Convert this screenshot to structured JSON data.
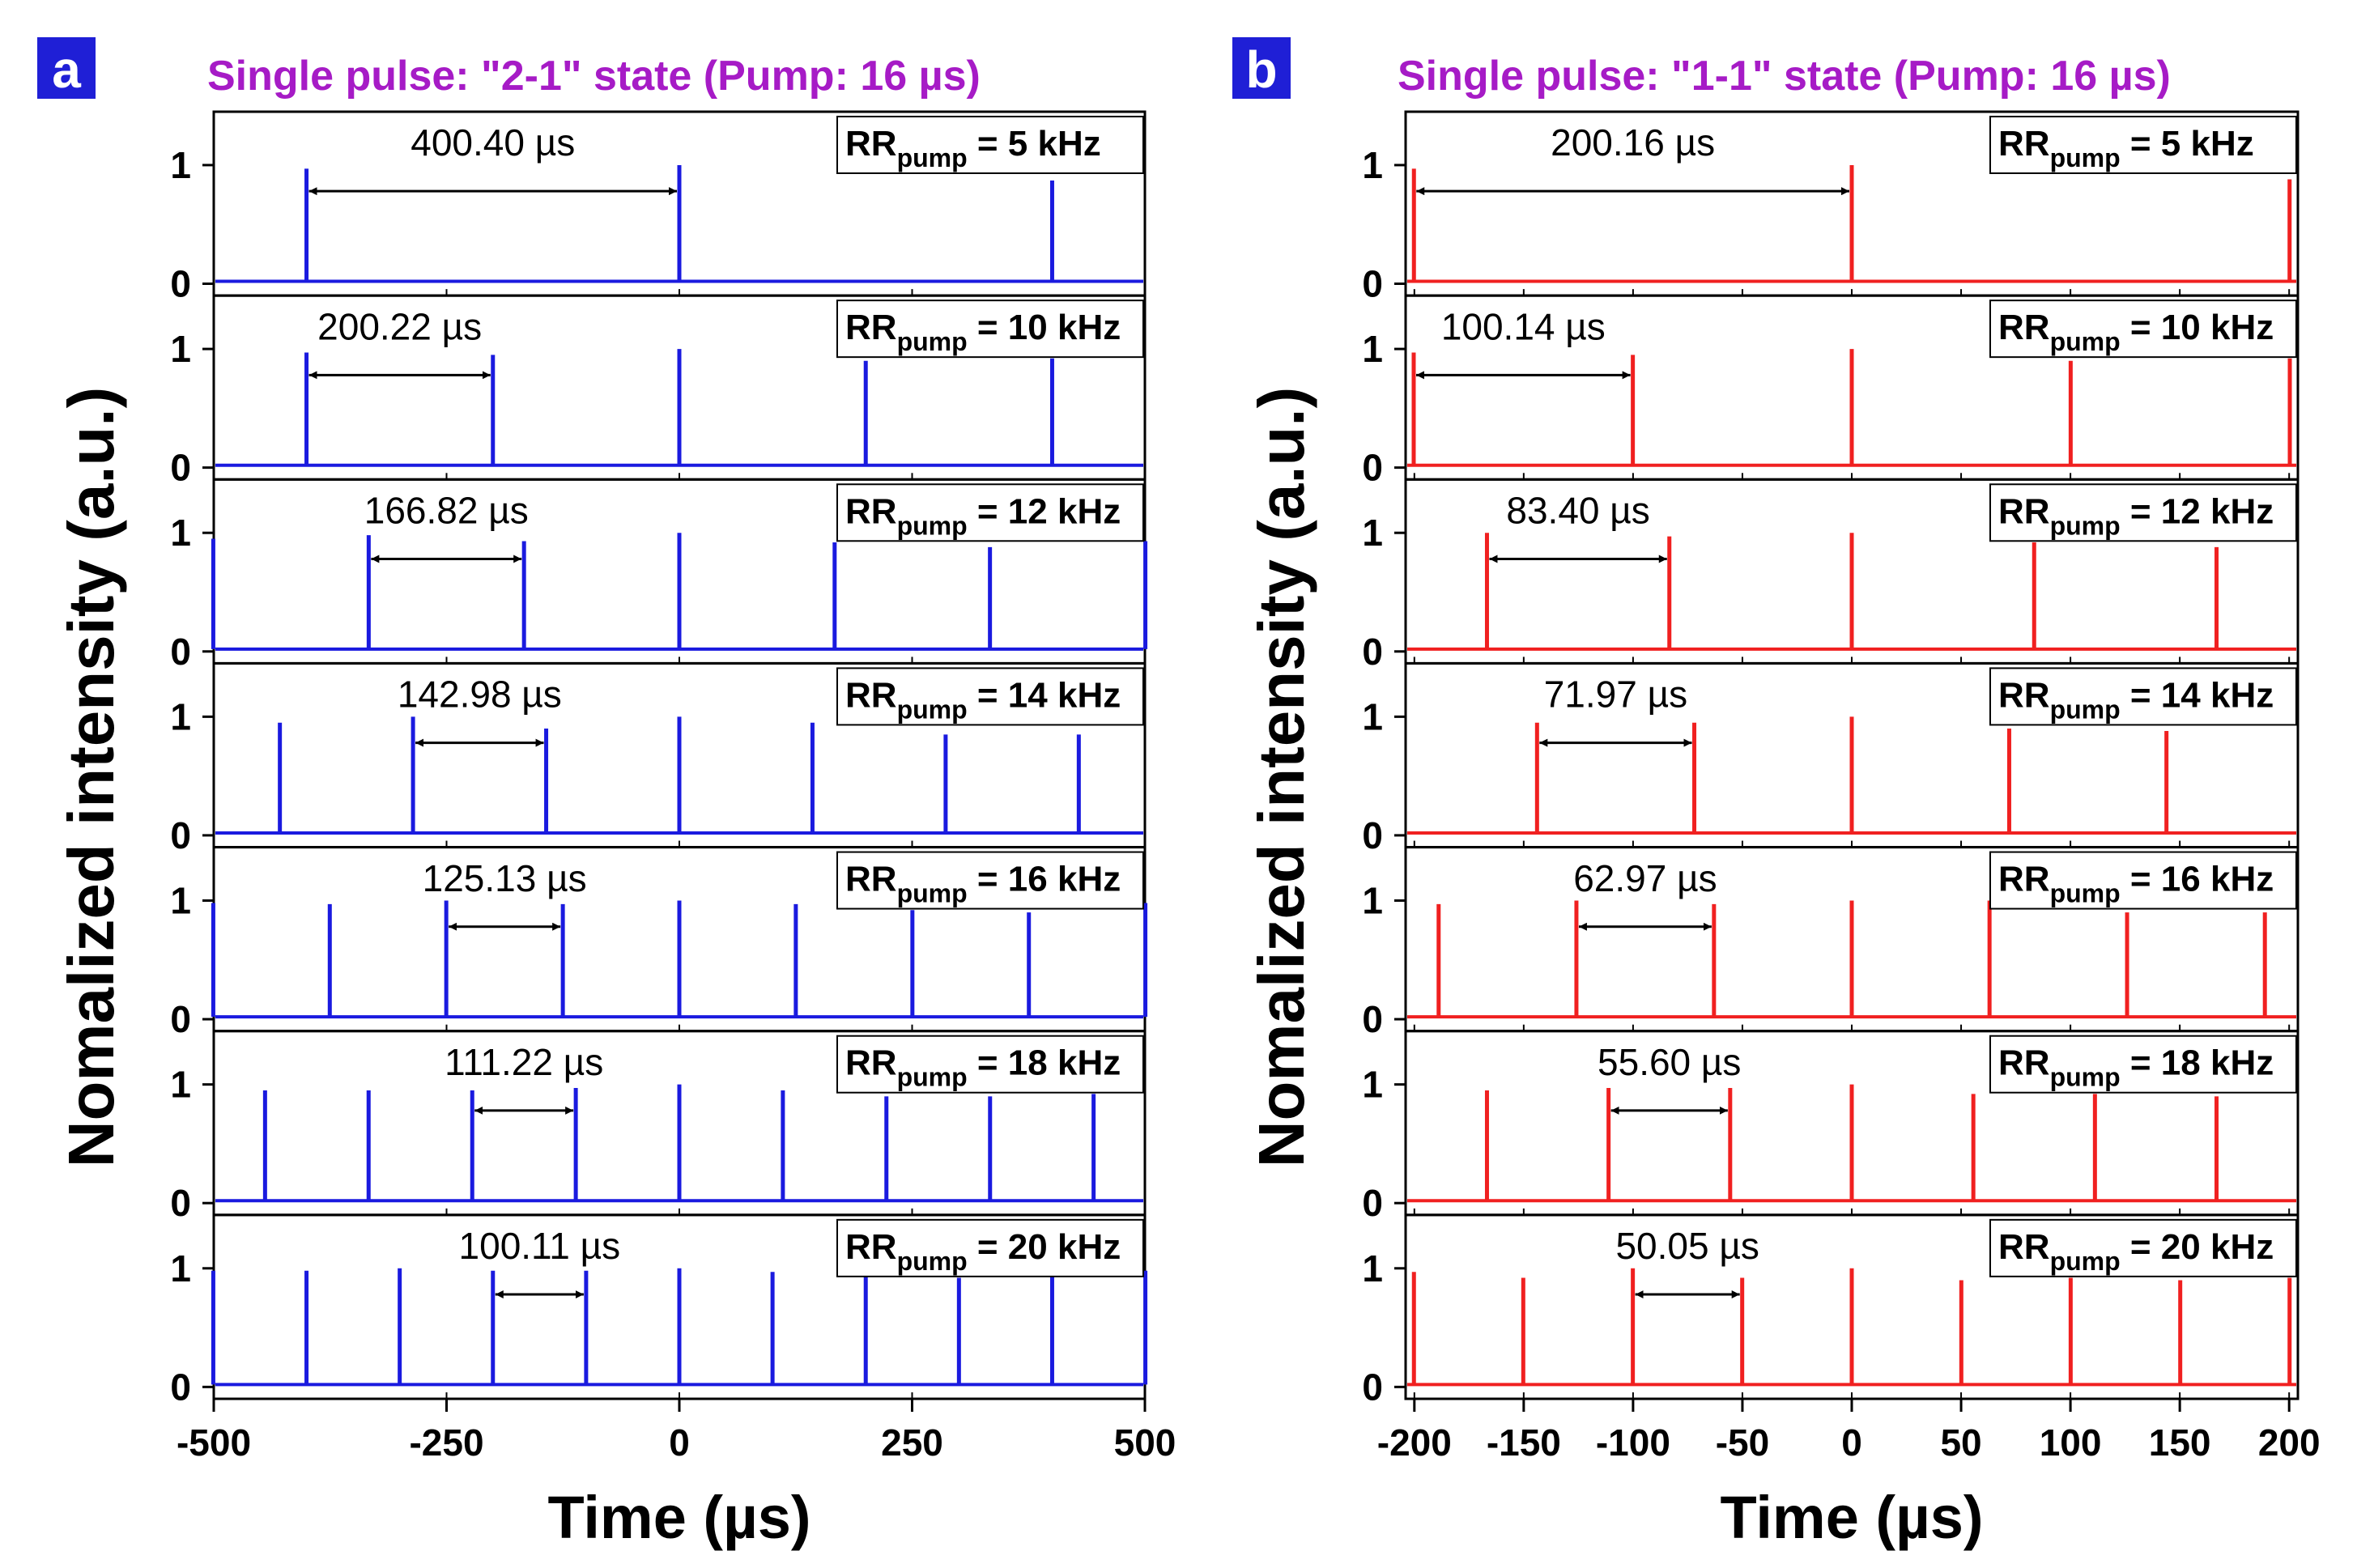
{
  "panels": [
    {
      "letter": "a",
      "title": "Single pulse: \"2-1\" state (Pump: 16 µs)",
      "xlabel": "Time (µs)",
      "ylabel": "Nomalized intensity (a.u.)",
      "color": "#1a1adf",
      "title_color": "#a61bc6",
      "letter_bg": "#1f1fd6"
    },
    {
      "letter": "b",
      "title": "Single pulse: \"1-1\" state (Pump: 16 µs)",
      "xlabel": "Time (µs)",
      "ylabel": "Nomalized intensity (a.u.)",
      "color": "#f02020",
      "title_color": "#a61bc6",
      "letter_bg": "#1f1fd6"
    }
  ],
  "chart_data": [
    {
      "type": "line",
      "panel": "a",
      "title": "Single pulse: \"2-1\" state (Pump: 16 µs)",
      "xlabel": "Time (µs)",
      "ylabel": "Nomalized intensity (a.u.)",
      "xlim": [
        -500,
        500
      ],
      "ylim": [
        -0.1,
        1.45
      ],
      "xticks": [
        -500,
        -250,
        0,
        250,
        500
      ],
      "yticks": [
        0,
        1
      ],
      "series": [
        {
          "rr_label": "= 5 kHz",
          "period_label": "400.40 µs",
          "pulses": [
            -400.4,
            0,
            400.4
          ],
          "heights": [
            0.97,
            1.0,
            0.87
          ],
          "arrow": [
            -400.4,
            0
          ]
        },
        {
          "rr_label": "= 10 kHz",
          "period_label": "200.22 µs",
          "pulses": [
            -400.4,
            -200.2,
            0,
            200.2,
            400.4
          ],
          "heights": [
            0.97,
            0.95,
            1.0,
            0.9,
            0.92
          ],
          "arrow": [
            -400.4,
            -200.2
          ]
        },
        {
          "rr_label": "= 12 kHz",
          "period_label": "166.82 µs",
          "pulses": [
            -500.5,
            -333.6,
            -166.8,
            0,
            166.8,
            333.6,
            500.5
          ],
          "heights": [
            0.95,
            0.98,
            0.93,
            1.0,
            0.92,
            0.88,
            0.93
          ],
          "arrow": [
            -333.6,
            -166.8
          ]
        },
        {
          "rr_label": "= 14 kHz",
          "period_label": "142.98 µs",
          "pulses": [
            -429,
            -286,
            -143,
            0,
            143,
            286,
            429
          ],
          "heights": [
            0.95,
            1.0,
            0.9,
            1.0,
            0.95,
            0.85,
            0.85
          ],
          "arrow": [
            -286,
            -143
          ]
        },
        {
          "rr_label": "= 16 kHz",
          "period_label": "125.13 µs",
          "pulses": [
            -500.5,
            -375.4,
            -250.3,
            -125.1,
            0,
            125.1,
            250.3,
            375.4,
            500.5
          ],
          "heights": [
            0.98,
            0.97,
            1.0,
            0.97,
            1.0,
            0.97,
            0.92,
            0.9,
            0.98
          ],
          "arrow": [
            -250.3,
            -125.1
          ]
        },
        {
          "rr_label": "= 18 kHz",
          "period_label": "111.22 µs",
          "pulses": [
            -444.9,
            -333.7,
            -222.4,
            -111.2,
            0,
            111.2,
            222.4,
            333.7,
            444.9
          ],
          "heights": [
            0.95,
            0.95,
            0.95,
            0.97,
            1.0,
            0.95,
            0.9,
            0.9,
            0.92
          ],
          "arrow": [
            -222.4,
            -111.2
          ]
        },
        {
          "rr_label": "= 20 kHz",
          "period_label": "100.11 µs",
          "pulses": [
            -500.5,
            -400.4,
            -300.3,
            -200.2,
            -100.1,
            0,
            100.1,
            200.2,
            300.3,
            400.4,
            500.5
          ],
          "heights": [
            0.98,
            0.98,
            1.0,
            0.98,
            0.98,
            1.0,
            0.97,
            0.98,
            0.92,
            0.95,
            0.98
          ],
          "arrow": [
            -200.2,
            -100.1
          ]
        }
      ]
    },
    {
      "type": "line",
      "panel": "b",
      "title": "Single pulse: \"1-1\" state (Pump: 16 µs)",
      "xlabel": "Time (µs)",
      "ylabel": "Nomalized intensity (a.u.)",
      "xlim": [
        -204,
        204
      ],
      "ylim": [
        -0.1,
        1.45
      ],
      "xticks": [
        -200,
        -150,
        -100,
        -50,
        0,
        50,
        100,
        150,
        200
      ],
      "yticks": [
        0,
        1
      ],
      "series": [
        {
          "rr_label": "= 5 kHz",
          "period_label": "200.16 µs",
          "pulses": [
            -200.2,
            0,
            200.2
          ],
          "heights": [
            0.97,
            1.0,
            0.88
          ],
          "arrow": [
            -200.2,
            0
          ]
        },
        {
          "rr_label": "= 10 kHz",
          "period_label": "100.14 µs",
          "pulses": [
            -200.3,
            -100.1,
            0,
            100.1,
            200.3
          ],
          "heights": [
            0.97,
            0.95,
            1.0,
            0.9,
            0.92
          ],
          "arrow": [
            -200.3,
            -100.1
          ]
        },
        {
          "rr_label": "= 12 kHz",
          "period_label": "83.40 µs",
          "pulses": [
            -166.8,
            -83.4,
            0,
            83.4,
            166.8
          ],
          "heights": [
            1.0,
            0.97,
            1.0,
            0.92,
            0.88
          ],
          "arrow": [
            -166.8,
            -83.4
          ]
        },
        {
          "rr_label": "= 14 kHz",
          "period_label": "71.97 µs",
          "pulses": [
            -143.9,
            -72,
            0,
            72,
            143.9
          ],
          "heights": [
            0.95,
            0.95,
            1.0,
            0.9,
            0.88
          ],
          "arrow": [
            -143.9,
            -72
          ]
        },
        {
          "rr_label": "= 16 kHz",
          "period_label": "62.97 µs",
          "pulses": [
            -188.9,
            -125.9,
            -63,
            0,
            63,
            125.9,
            188.9
          ],
          "heights": [
            0.97,
            1.0,
            0.97,
            1.0,
            1.0,
            0.9,
            0.9
          ],
          "arrow": [
            -125.9,
            -63
          ]
        },
        {
          "rr_label": "= 18 kHz",
          "period_label": "55.60 µs",
          "pulses": [
            -166.8,
            -111.2,
            -55.6,
            0,
            55.6,
            111.2,
            166.8
          ],
          "heights": [
            0.95,
            0.97,
            0.97,
            1.0,
            0.92,
            0.92,
            0.9
          ],
          "arrow": [
            -111.2,
            -55.6
          ]
        },
        {
          "rr_label": "= 20 kHz",
          "period_label": "50.05 µs",
          "pulses": [
            -200.2,
            -150.2,
            -100.1,
            -50.1,
            0,
            50.1,
            100.1,
            150.2,
            200.2
          ],
          "heights": [
            0.97,
            0.92,
            1.0,
            0.92,
            1.0,
            0.9,
            0.92,
            0.9,
            0.92
          ],
          "arrow": [
            -100.1,
            -50.1
          ]
        }
      ]
    }
  ]
}
